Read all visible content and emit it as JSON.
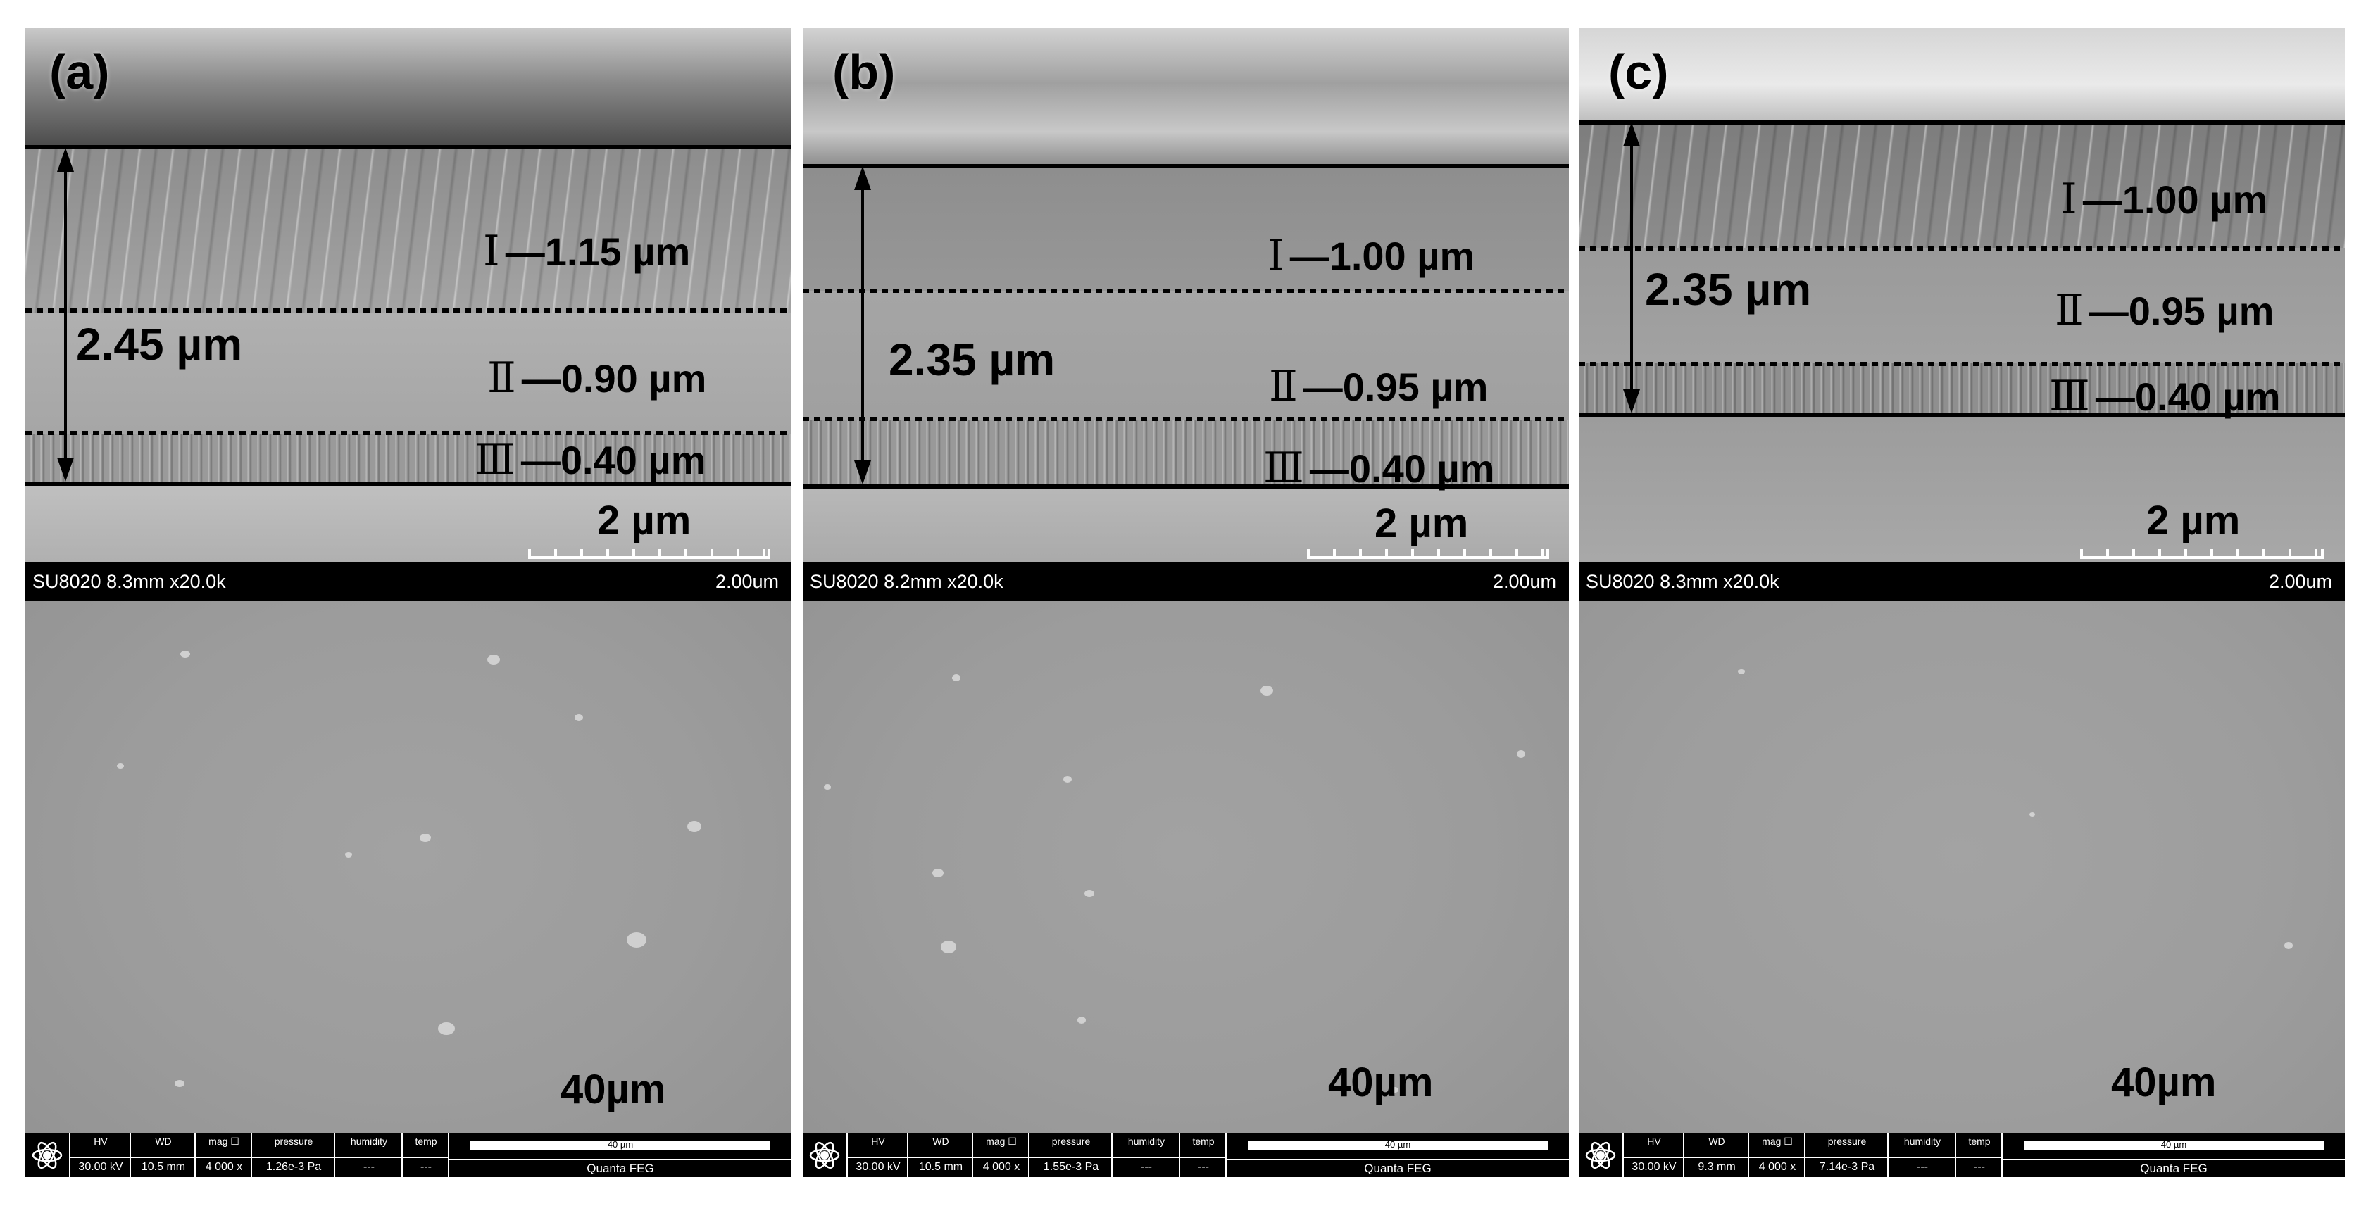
{
  "panels": [
    {
      "id": "a",
      "label": "(a)",
      "total_thickness": "2.45 µm",
      "layers": [
        {
          "roman": "Ⅰ",
          "value": "1.15 µm"
        },
        {
          "roman": "Ⅱ",
          "value": "0.90 µm"
        },
        {
          "roman": "Ⅲ",
          "value": "0.40 µm"
        }
      ],
      "cross_section_scale": "2 µm",
      "cross_section_info": "SU8020 8.3mm x20.0k",
      "cross_section_scale_small": "2.00um",
      "surface_scale": "40µm",
      "meta": {
        "hv_label": "HV",
        "hv": "30.00 kV",
        "wd_label": "WD",
        "wd": "10.5 mm",
        "mag_label": "mag ☐",
        "mag": "4 000 x",
        "pressure_label": "pressure",
        "pressure": "1.26e-3 Pa",
        "humidity_label": "humidity",
        "humidity": "---",
        "temp_label": "temp",
        "temp": "---",
        "bar_text": "40 µm",
        "instrument": "Quanta FEG"
      }
    },
    {
      "id": "b",
      "label": "(b)",
      "total_thickness": "2.35 µm",
      "layers": [
        {
          "roman": "Ⅰ",
          "value": "1.00 µm"
        },
        {
          "roman": "Ⅱ",
          "value": "0.95 µm"
        },
        {
          "roman": "Ⅲ",
          "value": "0.40 µm"
        }
      ],
      "cross_section_scale": "2 µm",
      "cross_section_info": "SU8020 8.2mm x20.0k",
      "cross_section_scale_small": "2.00um",
      "surface_scale": "40µm",
      "meta": {
        "hv_label": "HV",
        "hv": "30.00 kV",
        "wd_label": "WD",
        "wd": "10.5 mm",
        "mag_label": "mag ☐",
        "mag": "4 000 x",
        "pressure_label": "pressure",
        "pressure": "1.55e-3 Pa",
        "humidity_label": "humidity",
        "humidity": "---",
        "temp_label": "temp",
        "temp": "---",
        "bar_text": "40 µm",
        "instrument": "Quanta FEG"
      }
    },
    {
      "id": "c",
      "label": "(c)",
      "total_thickness": "2.35 µm",
      "layers": [
        {
          "roman": "Ⅰ",
          "value": "1.00 µm"
        },
        {
          "roman": "Ⅱ",
          "value": "0.95 µm"
        },
        {
          "roman": "Ⅲ",
          "value": "0.40 µm"
        }
      ],
      "cross_section_scale": "2 µm",
      "cross_section_info": "SU8020 8.3mm x20.0k",
      "cross_section_scale_small": "2.00um",
      "surface_scale": "40µm",
      "meta": {
        "hv_label": "HV",
        "hv": "30.00 kV",
        "wd_label": "WD",
        "wd": "9.3 mm",
        "mag_label": "mag ☐",
        "mag": "4 000 x",
        "pressure_label": "pressure",
        "pressure": "7.14e-3 Pa",
        "humidity_label": "humidity",
        "humidity": "---",
        "temp_label": "temp",
        "temp": "---",
        "bar_text": "40 µm",
        "instrument": "Quanta FEG"
      }
    }
  ],
  "colors": {
    "coating_top": "#8a8a8a",
    "coating_mid": "#a7a7a7",
    "coating_bottom": "#9a9a9a",
    "substrate": "#b4b4b4",
    "surface": "#9d9d9d"
  }
}
